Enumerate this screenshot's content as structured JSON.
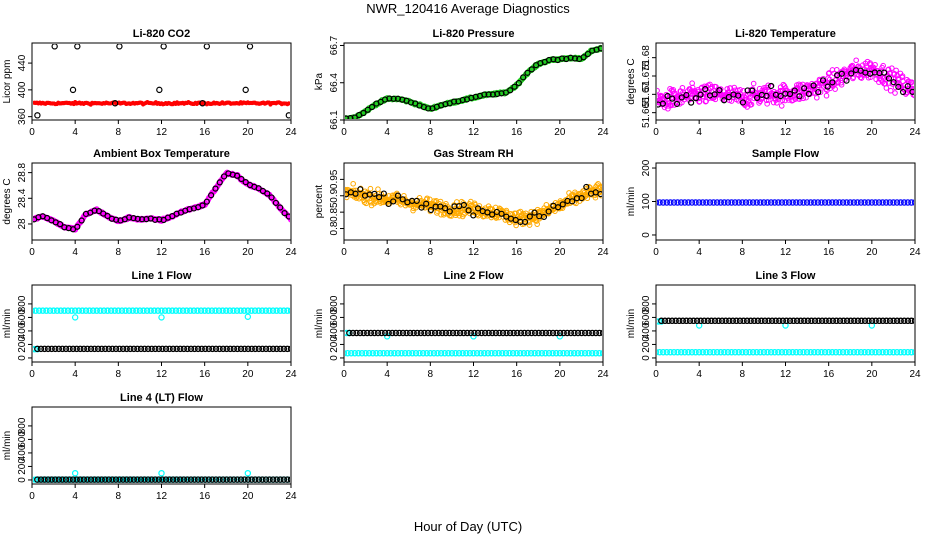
{
  "figure": {
    "title": "NWR_120416  Average Diagnostics",
    "xlabel": "Hour of Day (UTC)"
  },
  "colors": {
    "black": "#000000",
    "red": "#ff0000",
    "green": "#22cc22",
    "magenta": "#ff00ff",
    "orange": "#ffaa00",
    "blue": "#0000ff",
    "cyan": "#00ffff",
    "axis": "#000000"
  },
  "chart_data": [
    {
      "id": "co2",
      "type": "scatter",
      "title": "Li-820 CO2",
      "ylabel": "Licor ppm",
      "xlim": [
        0,
        24
      ],
      "ylim": [
        355,
        470
      ],
      "xticks": [
        0,
        4,
        8,
        12,
        16,
        20,
        24
      ],
      "yticks": [
        360,
        400,
        440
      ],
      "series": [
        {
          "style": "band",
          "color": "#ff0000",
          "x_range": [
            0.2,
            23.8
          ],
          "center": 380,
          "spread": 3
        },
        {
          "style": "points",
          "color": "#000000",
          "marker": "circle",
          "x": [
            0.5,
            2.1,
            3.8,
            4.2,
            7.7,
            8.1,
            11.8,
            12.2,
            15.8,
            16.2,
            19.8,
            20.2,
            23.8
          ],
          "y": [
            362,
            465,
            400,
            465,
            380,
            465,
            400,
            465,
            380,
            465,
            400,
            465,
            362
          ]
        }
      ]
    },
    {
      "id": "pressure",
      "type": "scatter",
      "title": "Li-820 Pressure",
      "ylabel": "kPa",
      "xlim": [
        0,
        24
      ],
      "ylim": [
        66.1,
        66.72
      ],
      "xticks": [
        0,
        4,
        8,
        12,
        16,
        20,
        24
      ],
      "yticks": [
        66.1,
        66.4,
        66.7
      ],
      "series": [
        {
          "style": "curve",
          "color": "#22cc22",
          "x": [
            0,
            1,
            2,
            3,
            4,
            5,
            6,
            7,
            8,
            9,
            10,
            11,
            12,
            13,
            14,
            15,
            16,
            17,
            18,
            19,
            20,
            21,
            22,
            23,
            24
          ],
          "y": [
            66.11,
            66.12,
            66.17,
            66.23,
            66.27,
            66.27,
            66.25,
            66.22,
            66.19,
            66.22,
            66.24,
            66.26,
            66.28,
            66.3,
            66.31,
            66.32,
            66.38,
            66.48,
            66.55,
            66.58,
            66.59,
            66.6,
            66.59,
            66.66,
            66.68
          ]
        }
      ]
    },
    {
      "id": "licor_temp",
      "type": "scatter",
      "title": "Li-820 Temperature",
      "ylabel": "degrees C",
      "xlim": [
        0,
        24
      ],
      "ylim": [
        51.663,
        51.684
      ],
      "xticks": [
        0,
        4,
        8,
        12,
        16,
        20,
        24
      ],
      "yticks": [
        51.665,
        51.67,
        51.675,
        51.68
      ],
      "series": [
        {
          "style": "noisy",
          "color": "#ff00ff",
          "x": [
            0,
            2,
            4,
            6,
            8,
            10,
            12,
            14,
            16,
            18,
            20,
            22,
            24
          ],
          "y": [
            51.668,
            51.669,
            51.67,
            51.67,
            51.669,
            51.67,
            51.67,
            51.671,
            51.673,
            51.676,
            51.677,
            51.674,
            51.671
          ],
          "spread": 0.0045
        }
      ]
    },
    {
      "id": "box_temp",
      "type": "scatter",
      "title": "Ambient Box Temperature",
      "ylabel": "degrees C",
      "xlim": [
        0,
        24
      ],
      "ylim": [
        27.75,
        28.95
      ],
      "xticks": [
        0,
        4,
        8,
        12,
        16,
        20,
        24
      ],
      "yticks": [
        28.0,
        28.4,
        28.8
      ],
      "series": [
        {
          "style": "curve",
          "color": "#ff00ff",
          "x": [
            0,
            1,
            2,
            3,
            4,
            5,
            6,
            7,
            8,
            9,
            10,
            11,
            12,
            13,
            14,
            15,
            16,
            17,
            18,
            19,
            20,
            21,
            22,
            23,
            24
          ],
          "y": [
            28.07,
            28.12,
            28.05,
            27.95,
            27.92,
            28.15,
            28.22,
            28.12,
            28.04,
            28.1,
            28.07,
            28.08,
            28.06,
            28.12,
            28.2,
            28.25,
            28.3,
            28.55,
            28.79,
            28.75,
            28.62,
            28.55,
            28.45,
            28.25,
            28.08
          ]
        }
      ]
    },
    {
      "id": "rh",
      "type": "scatter",
      "title": "Gas Stream RH",
      "ylabel": "percent",
      "xlim": [
        0,
        24
      ],
      "ylim": [
        0.765,
        1.0
      ],
      "xticks": [
        0,
        4,
        8,
        12,
        16,
        20,
        24
      ],
      "yticks": [
        0.8,
        0.85,
        0.9,
        0.95
      ],
      "series": [
        {
          "style": "noisy",
          "color": "#ffaa00",
          "x": [
            0,
            2,
            4,
            6,
            8,
            10,
            12,
            14,
            16,
            18,
            20,
            22,
            24
          ],
          "y": [
            0.91,
            0.9,
            0.89,
            0.88,
            0.87,
            0.86,
            0.86,
            0.85,
            0.83,
            0.84,
            0.87,
            0.9,
            0.92
          ],
          "spread": 0.035
        }
      ]
    },
    {
      "id": "sample_flow",
      "type": "scatter",
      "title": "Sample Flow",
      "ylabel": "ml/min",
      "xlim": [
        0,
        24
      ],
      "ylim": [
        -15,
        215
      ],
      "xticks": [
        0,
        4,
        8,
        12,
        16,
        20,
        24
      ],
      "yticks": [
        0,
        100,
        200
      ],
      "series": [
        {
          "style": "flat",
          "color": "#0000ff",
          "x_range": [
            0,
            24
          ],
          "y": 97
        }
      ]
    },
    {
      "id": "line1_flow",
      "type": "scatter",
      "title": "Line 1 Flow",
      "ylabel": "ml/min",
      "xlim": [
        0,
        24
      ],
      "ylim": [
        -60,
        1080
      ],
      "xticks": [
        0,
        4,
        8,
        12,
        16,
        20,
        24
      ],
      "yticks": [
        0,
        200,
        400,
        600,
        800
      ],
      "series": [
        {
          "style": "flat",
          "color": "#00ffff",
          "x_range": [
            0,
            24
          ],
          "y": 700
        },
        {
          "style": "flat",
          "color": "#00ffff",
          "x_range": [
            0,
            0.5
          ],
          "y": 130
        },
        {
          "style": "points",
          "color": "#00ffff",
          "marker": "circle",
          "x": [
            4,
            12,
            20
          ],
          "y": [
            600,
            600,
            610
          ]
        },
        {
          "style": "flat",
          "color": "#000000",
          "x_range": [
            0.5,
            24
          ],
          "y": 135
        }
      ]
    },
    {
      "id": "line2_flow",
      "type": "scatter",
      "title": "Line 2 Flow",
      "ylabel": "ml/min",
      "xlim": [
        0,
        24
      ],
      "ylim": [
        -60,
        1080
      ],
      "xticks": [
        0,
        4,
        8,
        12,
        16,
        20,
        24
      ],
      "yticks": [
        0,
        200,
        400,
        600,
        800
      ],
      "series": [
        {
          "style": "flat",
          "color": "#00ffff",
          "x_range": [
            0,
            24
          ],
          "y": 70
        },
        {
          "style": "flat",
          "color": "#00ffff",
          "x_range": [
            0,
            0.5
          ],
          "y": 370
        },
        {
          "style": "points",
          "color": "#00ffff",
          "marker": "circle",
          "x": [
            4,
            12,
            20
          ],
          "y": [
            320,
            320,
            320
          ]
        },
        {
          "style": "flat",
          "color": "#000000",
          "x_range": [
            0.5,
            24
          ],
          "y": 370
        }
      ]
    },
    {
      "id": "line3_flow",
      "type": "scatter",
      "title": "Line 3 Flow",
      "ylabel": "ml/min",
      "xlim": [
        0,
        24
      ],
      "ylim": [
        -60,
        1080
      ],
      "xticks": [
        0,
        4,
        8,
        12,
        16,
        20,
        24
      ],
      "yticks": [
        0,
        200,
        400,
        600,
        800
      ],
      "series": [
        {
          "style": "flat",
          "color": "#00ffff",
          "x_range": [
            0,
            24
          ],
          "y": 85
        },
        {
          "style": "flat",
          "color": "#00ffff",
          "x_range": [
            0,
            0.5
          ],
          "y": 540
        },
        {
          "style": "points",
          "color": "#00ffff",
          "marker": "circle",
          "x": [
            4,
            12,
            20
          ],
          "y": [
            480,
            480,
            480
          ]
        },
        {
          "style": "flat",
          "color": "#000000",
          "x_range": [
            0.5,
            24
          ],
          "y": 550
        }
      ]
    },
    {
      "id": "line4_flow",
      "type": "scatter",
      "title": "Line 4 (LT) Flow",
      "ylabel": "ml/min",
      "xlim": [
        0,
        24
      ],
      "ylim": [
        -60,
        1080
      ],
      "xticks": [
        0,
        4,
        8,
        12,
        16,
        20,
        24
      ],
      "yticks": [
        0,
        200,
        400,
        600,
        800
      ],
      "series": [
        {
          "style": "flat",
          "color": "#00ffff",
          "x_range": [
            0,
            24
          ],
          "y": 5
        },
        {
          "style": "points",
          "color": "#00ffff",
          "marker": "circle",
          "x": [
            4,
            12,
            20
          ],
          "y": [
            100,
            100,
            100
          ]
        },
        {
          "style": "flat",
          "color": "#000000",
          "x_range": [
            0.5,
            24
          ],
          "y": 5
        }
      ]
    }
  ]
}
